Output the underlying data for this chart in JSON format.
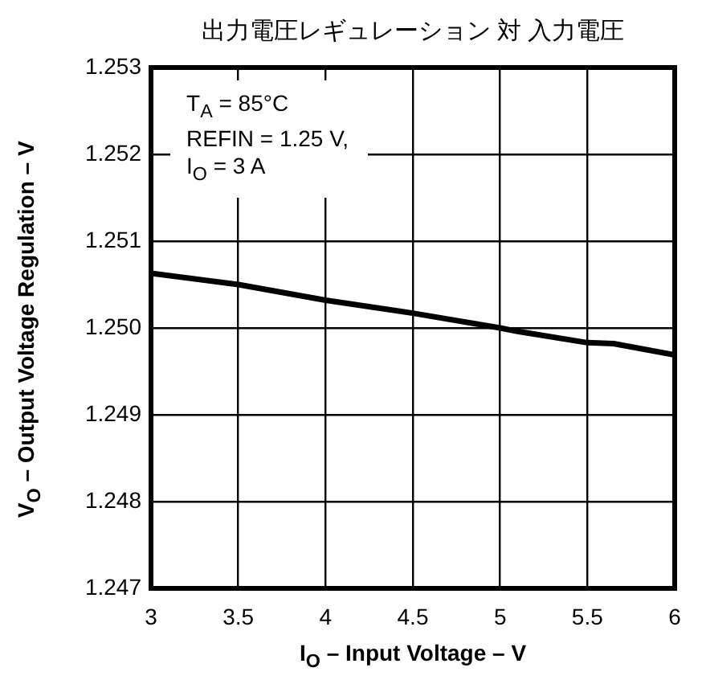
{
  "chart_data": {
    "type": "line",
    "title": "出力電圧レギュレーション 対 入力電圧",
    "xlabel": "I$_{O}$ – Input Voltage – V",
    "ylabel": "V$_{O}$ – Output Voltage Regulation – V",
    "annotations": [
      "T$_{A}$ = 85°C",
      "REFIN = 1.25 V,",
      "I$_{O}$ = 3 A"
    ],
    "x": [
      3,
      3.5,
      4,
      4.5,
      5,
      5.1,
      5.5,
      5.65,
      6
    ],
    "series": [
      {
        "color": "#000000",
        "values": [
          1.25063,
          1.2505,
          1.25032,
          1.25017,
          1.25,
          1.24996,
          1.24983,
          1.24982,
          1.24969
        ]
      }
    ],
    "xlim": [
      3,
      6
    ],
    "xticks": [
      3,
      3.5,
      4,
      4.5,
      5,
      5.5,
      6
    ],
    "ylim": [
      1.247,
      1.253
    ],
    "yticks": [
      1.247,
      1.248,
      1.249,
      {
        "value": 1.25,
        "label": "1.250"
      },
      1.251,
      1.252,
      1.253
    ],
    "grid": true,
    "legend": false,
    "marker": "none",
    "line_style": "solid"
  }
}
